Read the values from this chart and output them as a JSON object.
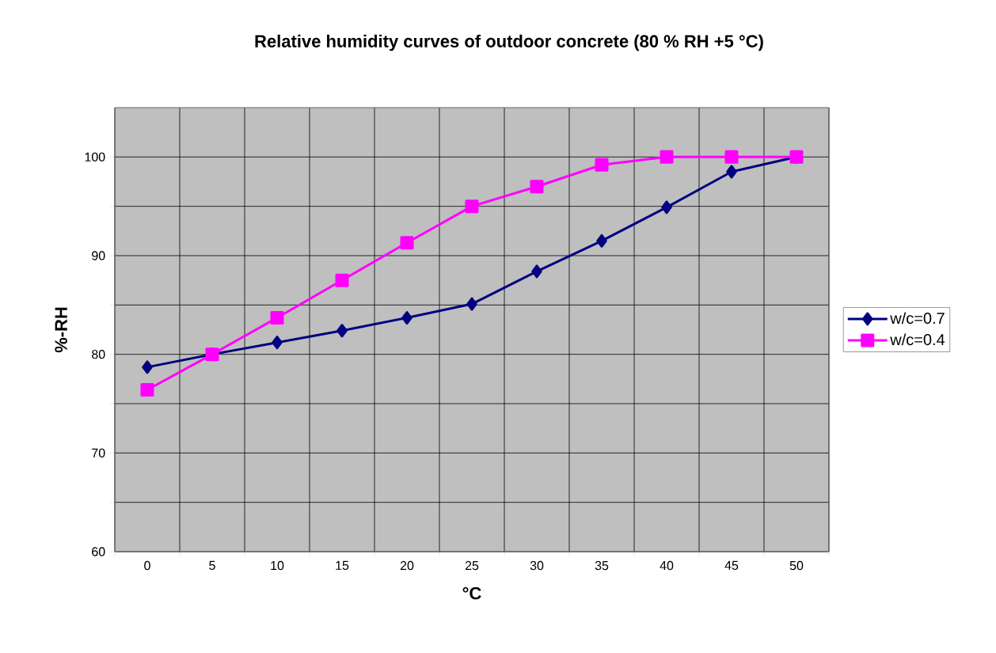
{
  "chart_data": {
    "type": "line",
    "title": "Relative humidity curves of outdoor concrete (80 % RH +5 °C)",
    "xlabel": "°C",
    "ylabel": "%-RH",
    "categories": [
      "0",
      "5",
      "10",
      "15",
      "20",
      "25",
      "30",
      "35",
      "40",
      "45",
      "50"
    ],
    "series": [
      {
        "name": "w/c=0.7",
        "color": "#000080",
        "marker": "diamond",
        "values": [
          78.7,
          80,
          81.2,
          82.4,
          83.7,
          85.1,
          88.4,
          91.5,
          94.9,
          98.5,
          100
        ]
      },
      {
        "name": "w/c=0.4",
        "color": "#ff00ff",
        "marker": "square",
        "values": [
          76.4,
          80,
          83.7,
          87.5,
          91.3,
          95,
          97,
          99.2,
          100,
          100,
          100
        ]
      }
    ],
    "ylim": [
      60,
      105
    ],
    "yticks": [
      60,
      {
        "value": 65,
        "label": null
      },
      70,
      {
        "value": 75,
        "label": null
      },
      80,
      {
        "value": 85,
        "label": null
      },
      90,
      {
        "value": 95,
        "label": null
      },
      100
    ],
    "grid": true,
    "legend": "right"
  }
}
